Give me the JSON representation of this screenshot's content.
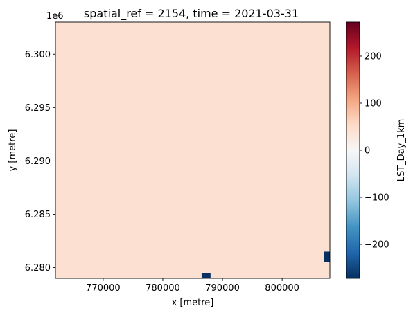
{
  "chart_data": {
    "type": "heatmap",
    "title": "spatial_ref = 2154, time = 2021-03-31",
    "xlabel": "x [metre]",
    "ylabel": "y [metre]",
    "y_offset_label": "1e6",
    "xlim": [
      762000,
      808000
    ],
    "ylim": [
      6.279,
      6.303
    ],
    "x_ticks": [
      770000,
      780000,
      790000,
      800000
    ],
    "x_tick_labels": [
      "770000",
      "780000",
      "790000",
      "800000"
    ],
    "y_ticks": [
      6.28,
      6.285,
      6.29,
      6.295,
      6.3
    ],
    "y_tick_labels": [
      "6.280",
      "6.285",
      "6.290",
      "6.295",
      "6.300"
    ],
    "colorbar": {
      "label": "LST_Day_1km",
      "cmap": "RdBu_r",
      "vmin": -272,
      "vmax": 272,
      "ticks": [
        -200,
        -100,
        0,
        100,
        200
      ],
      "tick_labels": [
        "−200",
        "−100",
        "0",
        "100",
        "200"
      ]
    },
    "background_value": 42,
    "patches": [
      {
        "x0": 786500,
        "x1": 788000,
        "y0": 6.279,
        "y1": 6.2795,
        "value": -272
      },
      {
        "x0": 807000,
        "x1": 808000,
        "y0": 6.2805,
        "y1": 6.2815,
        "value": -272
      }
    ],
    "grid": false
  }
}
